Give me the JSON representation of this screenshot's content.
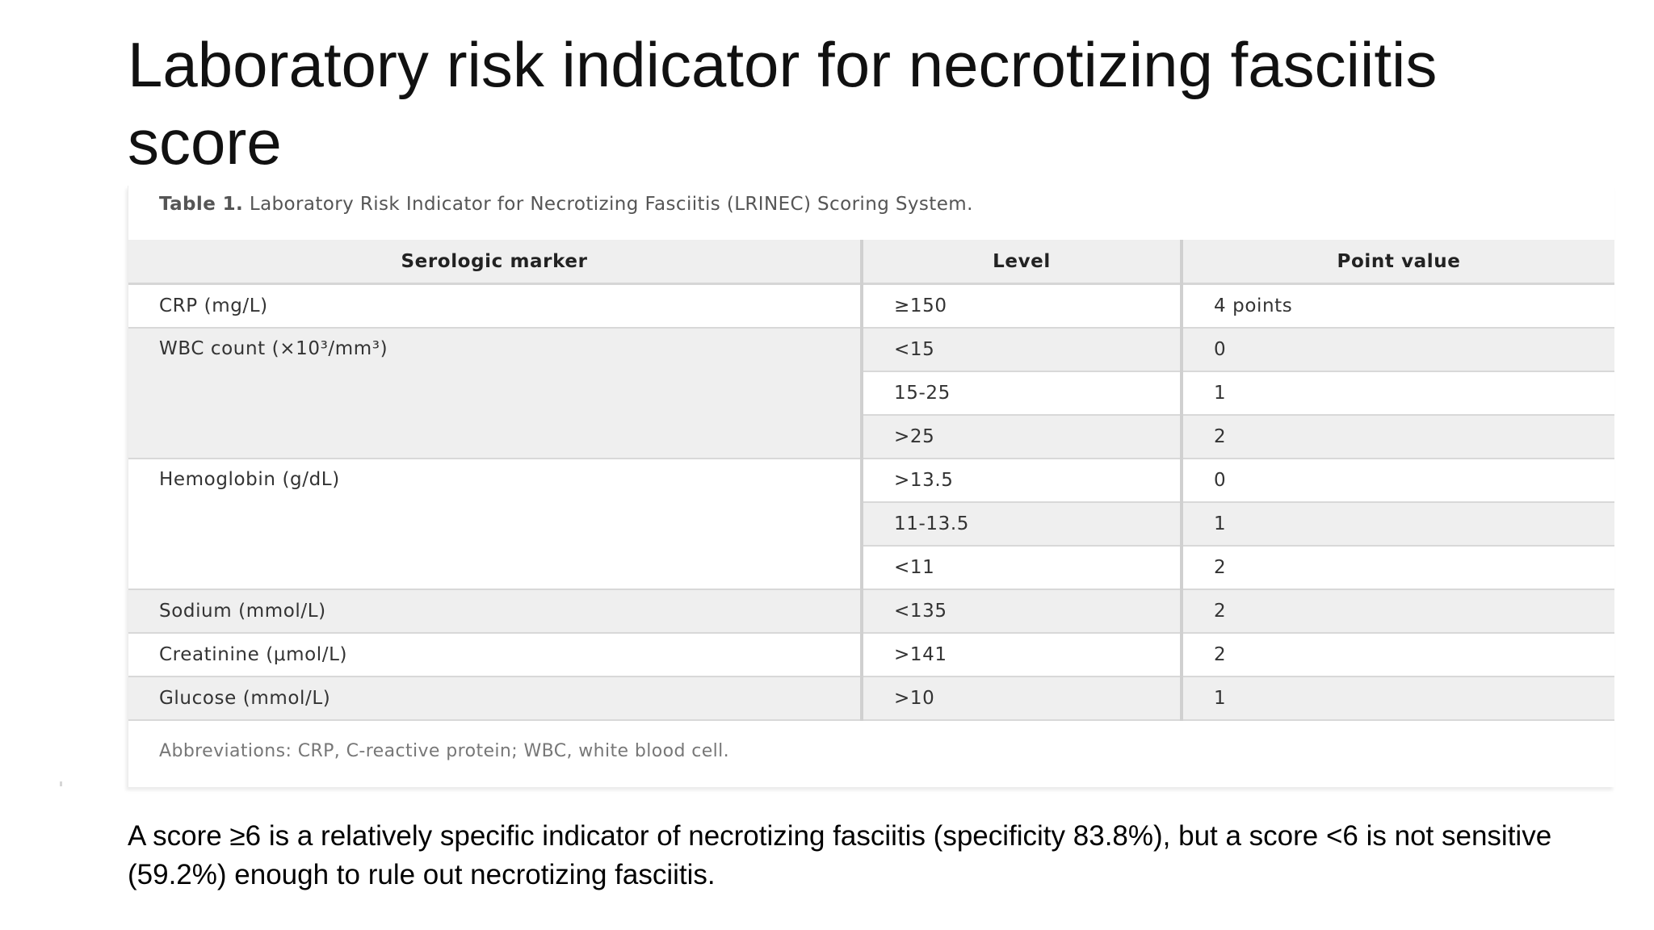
{
  "slide": {
    "title": "Laboratory risk indicator for necrotizing fasciitis score",
    "body": "A score ≥6 is a relatively specific indicator of necrotizing fasciitis (specificity 83.8%), but a score <6 is not sensitive (59.2%) enough to rule out necrotizing fasciitis."
  },
  "table": {
    "caption_label": "Table 1.",
    "caption_text": " Laboratory Risk Indicator for Necrotizing Fasciitis (LRINEC) Scoring System.",
    "headers": [
      "Serologic marker",
      "Level",
      "Point value"
    ],
    "rows": [
      {
        "marker": "CRP (mg/L)",
        "levels": [
          {
            "level": "≥150",
            "points": "4 points"
          }
        ]
      },
      {
        "marker": "WBC count (×10³/mm³)",
        "levels": [
          {
            "level": "<15",
            "points": "0"
          },
          {
            "level": "15-25",
            "points": "1"
          },
          {
            "level": ">25",
            "points": "2"
          }
        ]
      },
      {
        "marker": "Hemoglobin (g/dL)",
        "levels": [
          {
            "level": ">13.5",
            "points": "0"
          },
          {
            "level": "11-13.5",
            "points": "1"
          },
          {
            "level": "<11",
            "points": "2"
          }
        ]
      },
      {
        "marker": "Sodium (mmol/L)",
        "levels": [
          {
            "level": "<135",
            "points": "2"
          }
        ]
      },
      {
        "marker": "Creatinine (μmol/L)",
        "levels": [
          {
            "level": ">141",
            "points": "2"
          }
        ]
      },
      {
        "marker": "Glucose (mmol/L)",
        "levels": [
          {
            "level": ">10",
            "points": "1"
          }
        ]
      }
    ],
    "footnote": "Abbreviations: CRP, C-reactive protein; WBC, white blood cell."
  }
}
